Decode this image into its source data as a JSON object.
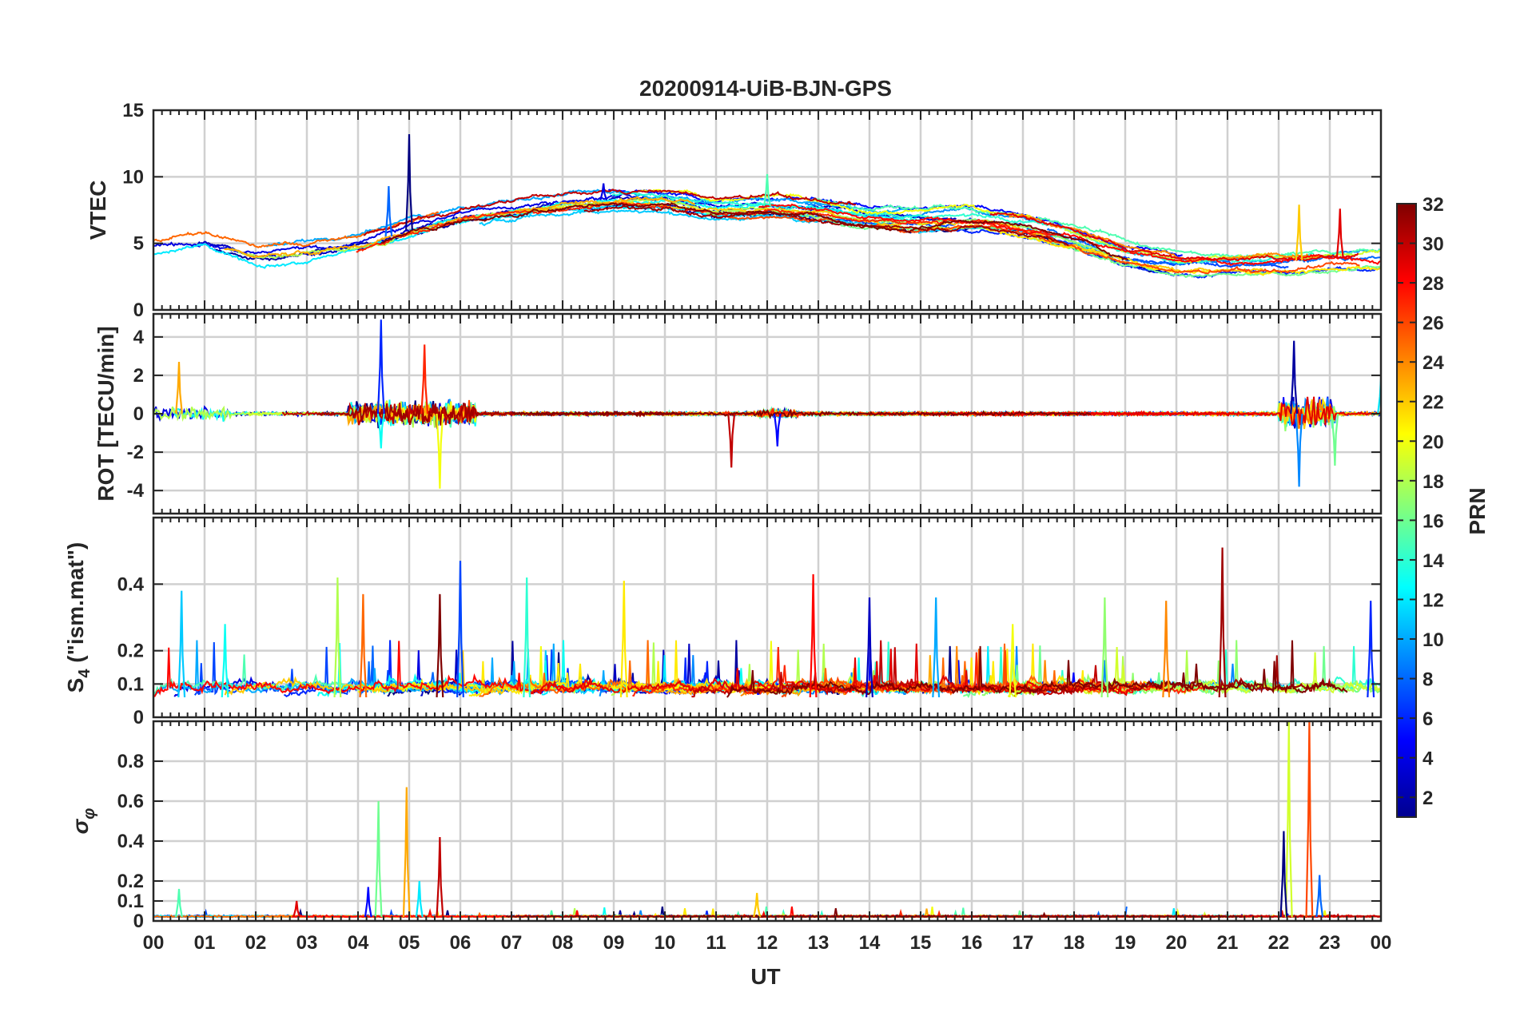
{
  "chart_data": {
    "type": "line",
    "title": "20200914-UiB-BJN-GPS",
    "xlabel": "UT",
    "x_tick_labels": [
      "00",
      "01",
      "02",
      "03",
      "04",
      "05",
      "06",
      "07",
      "08",
      "09",
      "10",
      "11",
      "12",
      "13",
      "14",
      "15",
      "16",
      "17",
      "18",
      "19",
      "20",
      "21",
      "22",
      "23",
      "00"
    ],
    "xlim_hours": [
      0,
      24
    ],
    "grid": true,
    "colorbar": {
      "label": "PRN",
      "range": [
        1,
        32
      ],
      "ticks": [
        2,
        4,
        6,
        8,
        10,
        12,
        14,
        16,
        18,
        20,
        22,
        24,
        26,
        28,
        30,
        32
      ],
      "colormap": "jet"
    },
    "panels": [
      {
        "id": "vtec",
        "ylabel": "VTEC",
        "ylim": [
          0,
          15
        ],
        "yticks": [
          0,
          5,
          10,
          15
        ],
        "series_note_visible": false,
        "envelope": {
          "x": [
            0,
            1,
            2,
            3,
            4,
            5,
            6,
            7,
            8,
            9,
            10,
            11,
            12,
            13,
            14,
            15,
            16,
            17,
            18,
            19,
            20,
            21,
            22,
            23,
            24
          ],
          "y": [
            4.5,
            5.0,
            4.0,
            4.2,
            4.8,
            6.0,
            7.0,
            7.5,
            8.0,
            8.3,
            8.2,
            7.6,
            7.8,
            7.5,
            7.0,
            6.8,
            7.0,
            6.5,
            5.5,
            4.2,
            3.5,
            3.5,
            3.6,
            3.9,
            4.0
          ]
        },
        "spikes": [
          [
            5.0,
            13.2
          ],
          [
            4.6,
            9.3
          ],
          [
            12.0,
            10.2
          ],
          [
            22.4,
            7.9
          ],
          [
            23.2,
            7.6
          ],
          [
            8.8,
            9.5
          ]
        ]
      },
      {
        "id": "rot",
        "ylabel": "ROT [TECU/min]",
        "ylim": [
          -5.2,
          5.2
        ],
        "yticks": [
          -4,
          -2,
          0,
          2,
          4
        ],
        "active_windows": [
          [
            3.8,
            6.3,
            3.0
          ],
          [
            22.0,
            23.1,
            3.6
          ],
          [
            0.0,
            1.5,
            1.8
          ],
          [
            11.8,
            12.6,
            0.9
          ]
        ],
        "spikes": [
          [
            4.45,
            4.9
          ],
          [
            4.45,
            -1.8
          ],
          [
            5.6,
            -3.9
          ],
          [
            5.3,
            3.6
          ],
          [
            22.3,
            3.8
          ],
          [
            22.4,
            -3.8
          ],
          [
            23.1,
            -2.7
          ],
          [
            0.5,
            2.7
          ],
          [
            11.3,
            -2.8
          ],
          [
            12.2,
            -1.7
          ],
          [
            24.0,
            1.8
          ]
        ]
      },
      {
        "id": "s4",
        "ylabel": "S4 (\"ism.mat\")",
        "ylabel_main": "S",
        "ylabel_sub": "4",
        "ylabel_rest": " (\"ism.mat\")",
        "ylim": [
          0,
          0.6
        ],
        "yticks": [
          0,
          0.1,
          0.2,
          0.4
        ],
        "baseline": 0.06,
        "spikes": [
          [
            0.55,
            0.38
          ],
          [
            3.6,
            0.42
          ],
          [
            4.1,
            0.37
          ],
          [
            5.6,
            0.37
          ],
          [
            6.0,
            0.47
          ],
          [
            7.3,
            0.42
          ],
          [
            9.2,
            0.41
          ],
          [
            12.9,
            0.43
          ],
          [
            14.0,
            0.36
          ],
          [
            15.3,
            0.36
          ],
          [
            18.6,
            0.36
          ],
          [
            19.8,
            0.35
          ],
          [
            20.9,
            0.51
          ],
          [
            23.8,
            0.35
          ],
          [
            1.4,
            0.28
          ],
          [
            16.8,
            0.28
          ]
        ]
      },
      {
        "id": "sigma_phi",
        "ylabel": "σφ",
        "ylabel_main": "σ",
        "ylabel_sub": "φ",
        "ylim": [
          0,
          1.0
        ],
        "yticks": [
          0,
          0.1,
          0.2,
          0.4,
          0.6,
          0.8
        ],
        "baseline": 0.02,
        "spikes": [
          [
            4.4,
            0.6
          ],
          [
            4.95,
            0.67
          ],
          [
            5.6,
            0.42
          ],
          [
            4.2,
            0.17
          ],
          [
            5.2,
            0.2
          ],
          [
            22.2,
            1.0
          ],
          [
            22.6,
            1.0
          ],
          [
            22.1,
            0.45
          ],
          [
            22.8,
            0.23
          ],
          [
            0.5,
            0.16
          ],
          [
            11.8,
            0.14
          ],
          [
            2.8,
            0.1
          ]
        ]
      }
    ]
  }
}
